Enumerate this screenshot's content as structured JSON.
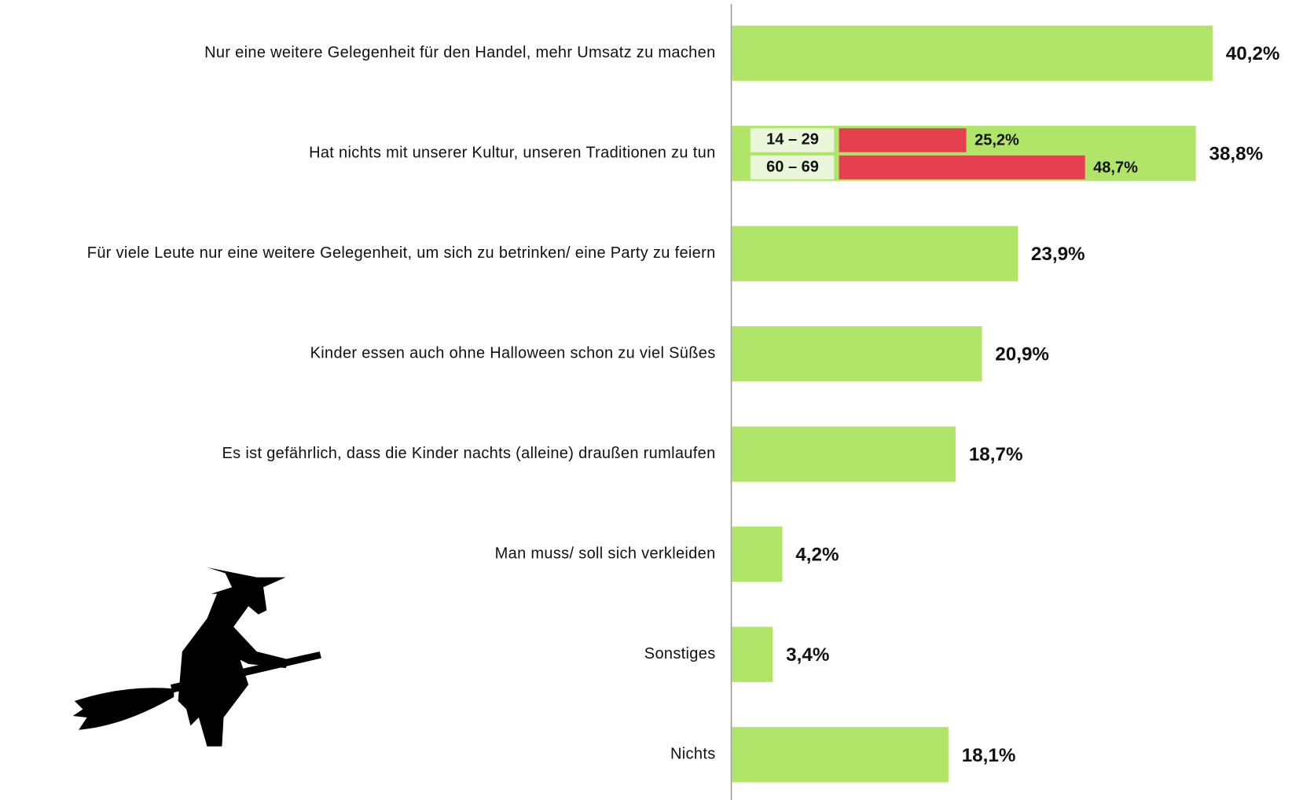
{
  "chart_data": {
    "type": "bar",
    "orientation": "horizontal",
    "color": "#b0e56a",
    "categories": [
      "Nur eine weitere Gelegenheit für den Handel, mehr Umsatz zu machen",
      "Hat nichts mit unserer Kultur, unseren Traditionen zu tun",
      "Für viele Leute nur eine weitere Gelegenheit, um sich zu betrinken/ eine Party zu feiern",
      "Kinder essen auch ohne Halloween schon zu viel Süßes",
      "Es ist gefährlich, dass die Kinder nachts (alleine) draußen rumlaufen",
      "Man muss/ soll sich verkleiden",
      "Sonstiges",
      "Nichts"
    ],
    "values": [
      40.2,
      38.8,
      23.9,
      20.9,
      18.7,
      4.2,
      3.4,
      18.1
    ],
    "value_labels": [
      "40,2%",
      "38,8%",
      "23,9%",
      "20,9%",
      "18,7%",
      "4,2%",
      "3,4%",
      "18,1%"
    ],
    "inset": {
      "categories": [
        "14 – 29",
        "60 – 69"
      ],
      "values": [
        25.2,
        48.7
      ],
      "value_labels": [
        "25,2%",
        "48,7%"
      ],
      "color": "#e5404f"
    }
  }
}
